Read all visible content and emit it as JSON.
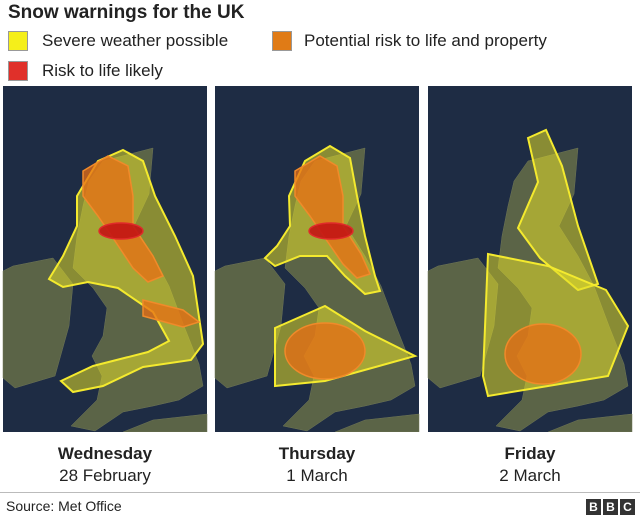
{
  "title": "Snow warnings for the UK",
  "legend": [
    {
      "label": "Severe weather possible",
      "color": "#f5ef1a"
    },
    {
      "label": "Potential risk to life and property",
      "color": "#e07b16"
    },
    {
      "label": "Risk to life likely",
      "color": "#e0302a"
    }
  ],
  "panels": [
    {
      "day": "Wednesday",
      "date": "28 February"
    },
    {
      "day": "Thursday",
      "date": "1 March"
    },
    {
      "day": "Friday",
      "date": "2 March"
    }
  ],
  "source": "Source: Met Office",
  "logo": [
    "B",
    "B",
    "C"
  ]
}
